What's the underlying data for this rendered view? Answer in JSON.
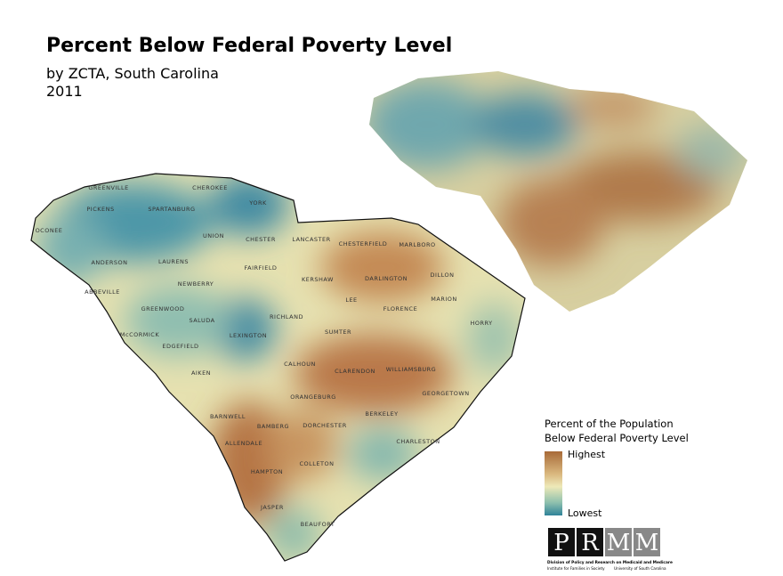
{
  "header": {
    "title": "Percent Below Federal Poverty Level",
    "subtitle": "by ZCTA, South Carolina",
    "year": "2011"
  },
  "map": {
    "counties": [
      "GREENVILLE",
      "CHEROKEE",
      "PICKENS",
      "SPARTANBURG",
      "YORK",
      "OCONEE",
      "UNION",
      "CHESTER",
      "LANCASTER",
      "CHESTERFIELD",
      "MARLBORO",
      "ANDERSON",
      "LAURENS",
      "FAIRFIELD",
      "NEWBERRY",
      "ABBEVILLE",
      "KERSHAW",
      "DARLINGTON",
      "DILLON",
      "LEE",
      "GREENWOOD",
      "MARION",
      "RICHLAND",
      "FLORENCE",
      "SALUDA",
      "McCORMICK",
      "LEXINGTON",
      "SUMTER",
      "HORRY",
      "EDGEFIELD",
      "CALHOUN",
      "CLARENDON",
      "AIKEN",
      "WILLIAMSBURG",
      "ORANGEBURG",
      "GEORGETOWN",
      "BARNWELL",
      "BERKELEY",
      "BAMBERG",
      "DORCHESTER",
      "ALLENDALE",
      "CHARLESTON",
      "COLLETON",
      "HAMPTON",
      "JASPER",
      "BEAUFORT"
    ]
  },
  "legend": {
    "title_line1": "Percent of the Population",
    "title_line2": "Below Federal Poverty Level",
    "high": "Highest",
    "low": "Lowest"
  },
  "logo": {
    "letters": [
      "P",
      "R",
      "M",
      "M"
    ],
    "line1": "Division of Policy and Research on Medicaid and Medicare",
    "line2": "Institute for Families in Society",
    "line3": "University of South Carolina"
  }
}
